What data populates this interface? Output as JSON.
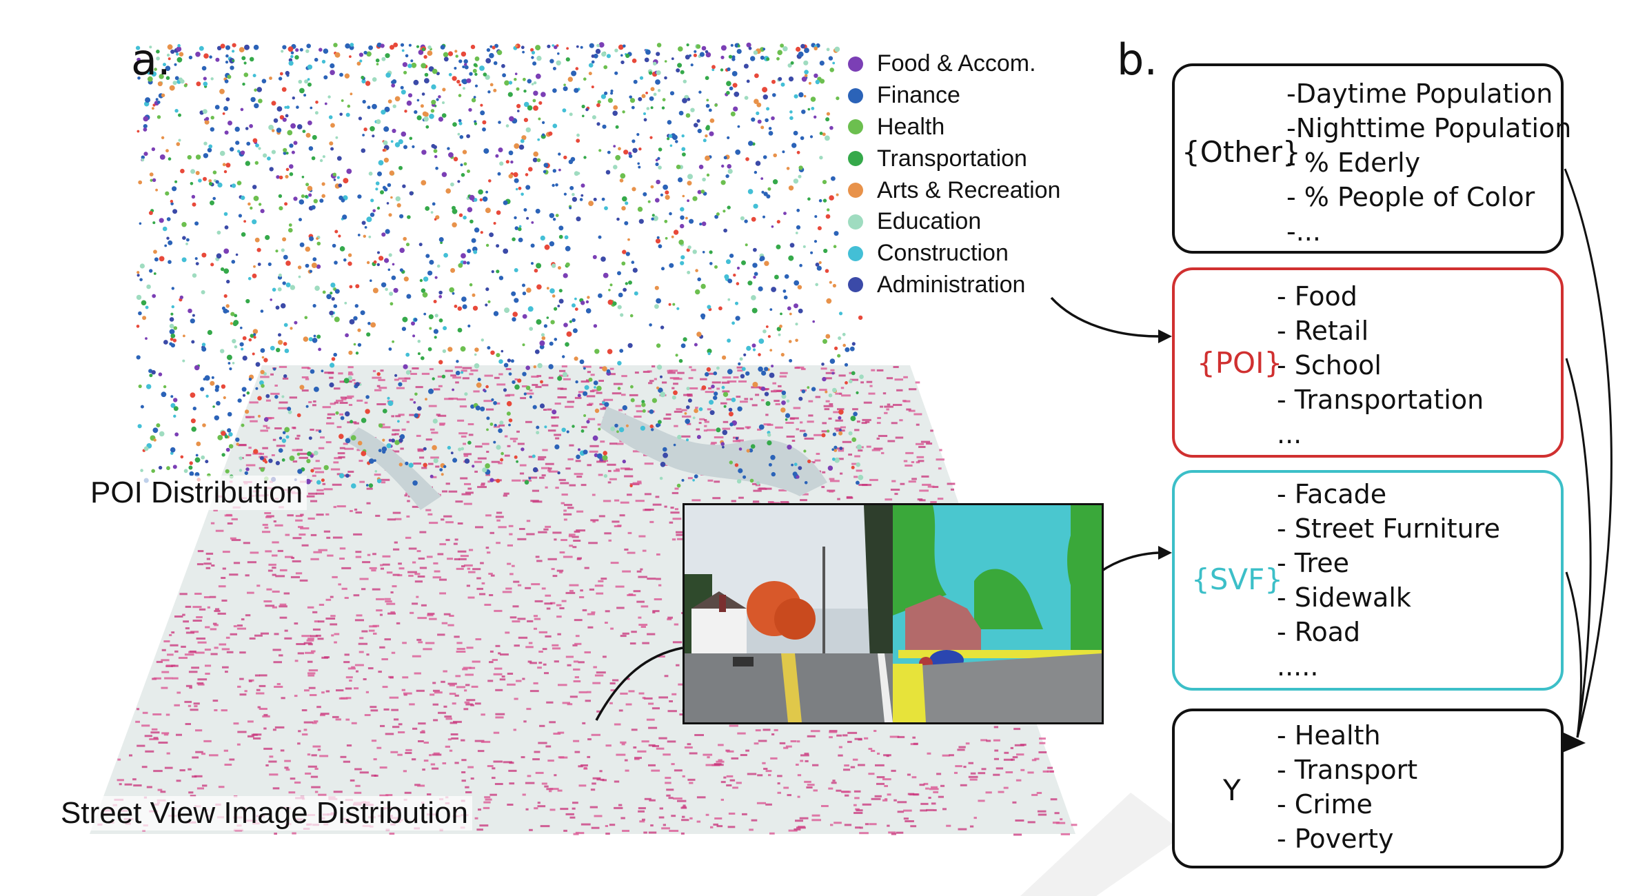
{
  "panel_a": {
    "label": "a.",
    "legend": [
      {
        "label": "Food & Accom.",
        "color": "#7b3fb5"
      },
      {
        "label": "Finance",
        "color": "#2b63b8"
      },
      {
        "label": "Health",
        "color": "#6cbf4f"
      },
      {
        "label": "Transportation",
        "color": "#35a94a"
      },
      {
        "label": "Arts & Recreation",
        "color": "#e8924a"
      },
      {
        "label": "Education",
        "color": "#9fdcc0"
      },
      {
        "label": "Construction",
        "color": "#43bfd6"
      },
      {
        "label": "Administration",
        "color": "#e8493a"
      }
    ],
    "legend_extra_color": "#3b4aa8",
    "poi_label": "POI Distribution",
    "svi_label": "Street View Image Distribution"
  },
  "panel_b": {
    "label": "b.",
    "boxes": [
      {
        "tag": "{Other}",
        "tag_color": "#111111",
        "border": "#111111",
        "items": [
          "-Daytime Population",
          "-Nighttime Population",
          "- % Ederly",
          "- % People of Color",
          "-..."
        ]
      },
      {
        "tag": "{POI}",
        "tag_color": "#d03030",
        "border": "#d03030",
        "items": [
          "- Food",
          "- Retail",
          "- School",
          "- Transportation",
          "..."
        ]
      },
      {
        "tag": "{SVF}",
        "tag_color": "#3cbfc8",
        "border": "#3cbfc8",
        "items": [
          "- Facade",
          "- Street Furniture",
          "- Tree",
          "- Sidewalk",
          "- Road",
          "....."
        ]
      },
      {
        "tag": "Y",
        "tag_color": "#111111",
        "border": "#111111",
        "items": [
          "- Health",
          "- Transport",
          "- Crime",
          "- Poverty"
        ]
      }
    ]
  }
}
